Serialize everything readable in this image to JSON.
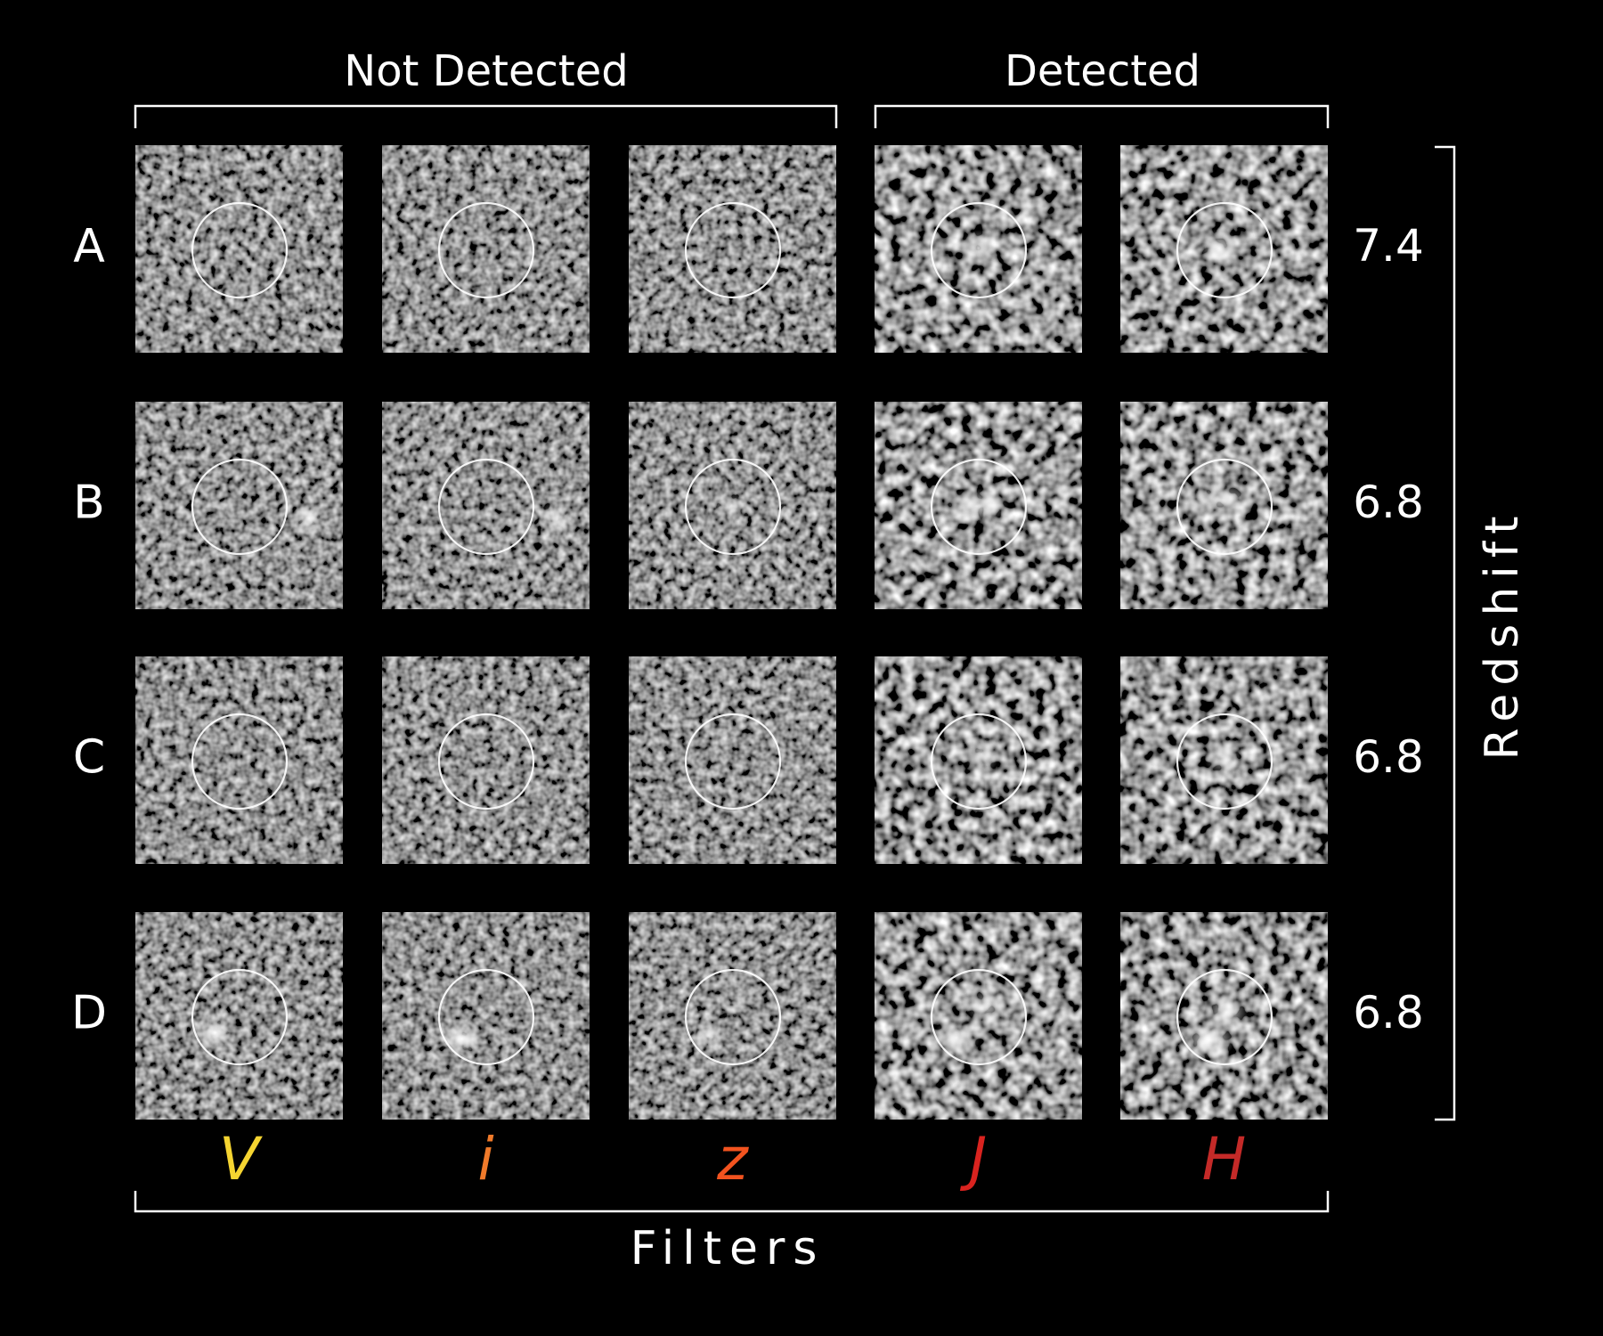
{
  "header": {
    "left_group": "Not Detected",
    "right_group": "Detected"
  },
  "rows": [
    {
      "label": "A",
      "redshift": "7.4"
    },
    {
      "label": "B",
      "redshift": "6.8"
    },
    {
      "label": "C",
      "redshift": "6.8"
    },
    {
      "label": "D",
      "redshift": "6.8"
    }
  ],
  "filters": [
    {
      "label": "V",
      "color": "#f5d431"
    },
    {
      "label": "i",
      "color": "#f07a2a"
    },
    {
      "label": "z",
      "color": "#f2531f"
    },
    {
      "label": "J",
      "color": "#d9231f"
    },
    {
      "label": "H",
      "color": "#c42a28"
    }
  ],
  "axis_labels": {
    "bottom": "Filters",
    "right": "Redshift"
  }
}
